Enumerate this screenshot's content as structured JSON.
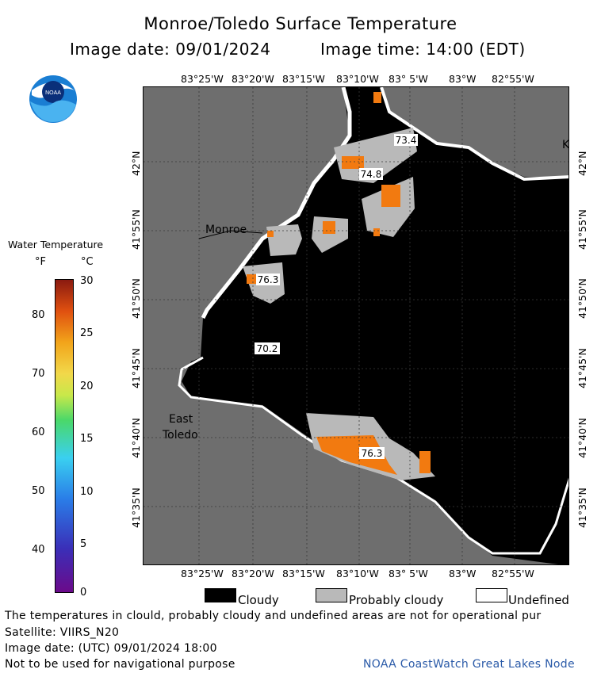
{
  "header": {
    "title": "Monroe/Toledo Surface Temperature",
    "date_line": "Image date: 09/01/2024",
    "time_line": "Image time: 14:00 (EDT)"
  },
  "logo": {
    "text": "NOAA"
  },
  "colorbar": {
    "title": "Water Temperature",
    "unit_f": "°F",
    "unit_c": "°C",
    "f_ticks": [
      "80",
      "70",
      "60",
      "50",
      "40"
    ],
    "c_ticks": [
      "30",
      "25",
      "20",
      "15",
      "10",
      "5",
      "0"
    ]
  },
  "map": {
    "lon_labels_top": [
      "83°25'W",
      "83°20'W",
      "83°15'W",
      "83°10'W",
      "83° 5'W",
      "83°W",
      "82°55'W"
    ],
    "lon_labels_bottom": [
      "83°25'W",
      "83°20'W",
      "83°15'W",
      "83°10'W",
      "83° 5'W",
      "83°W",
      "82°55'W"
    ],
    "lat_labels": [
      "42°N",
      "41°55'N",
      "41°50'N",
      "41°45'N",
      "41°40'N",
      "41°35'N"
    ],
    "places": {
      "monroe": "Monroe",
      "east_toledo_1": "East",
      "east_toledo_2": "Toledo",
      "k": "K"
    },
    "temps": [
      "73.4",
      "74.8",
      "76.3",
      "70.2",
      "76.3"
    ],
    "colors": {
      "land": "#6e6e6e",
      "cloud": "#000000",
      "prob_cloud": "#b9b9b9",
      "undefined": "#ffffff",
      "warm": "#f27a10"
    }
  },
  "legend": {
    "cloudy": "Cloudy",
    "probably_cloudy": "Probably cloudy",
    "undefined": "Undefined"
  },
  "footer": {
    "note": "The temperatures in clould, probably cloudy and undefined areas are not for operational pur",
    "satellite": "Satellite: VIIRS_N20",
    "utc": "Image date: (UTC) 09/01/2024  18:00",
    "nav": "Not to be used for navigational purpose",
    "credit": "NOAA CoastWatch Great Lakes Node"
  }
}
